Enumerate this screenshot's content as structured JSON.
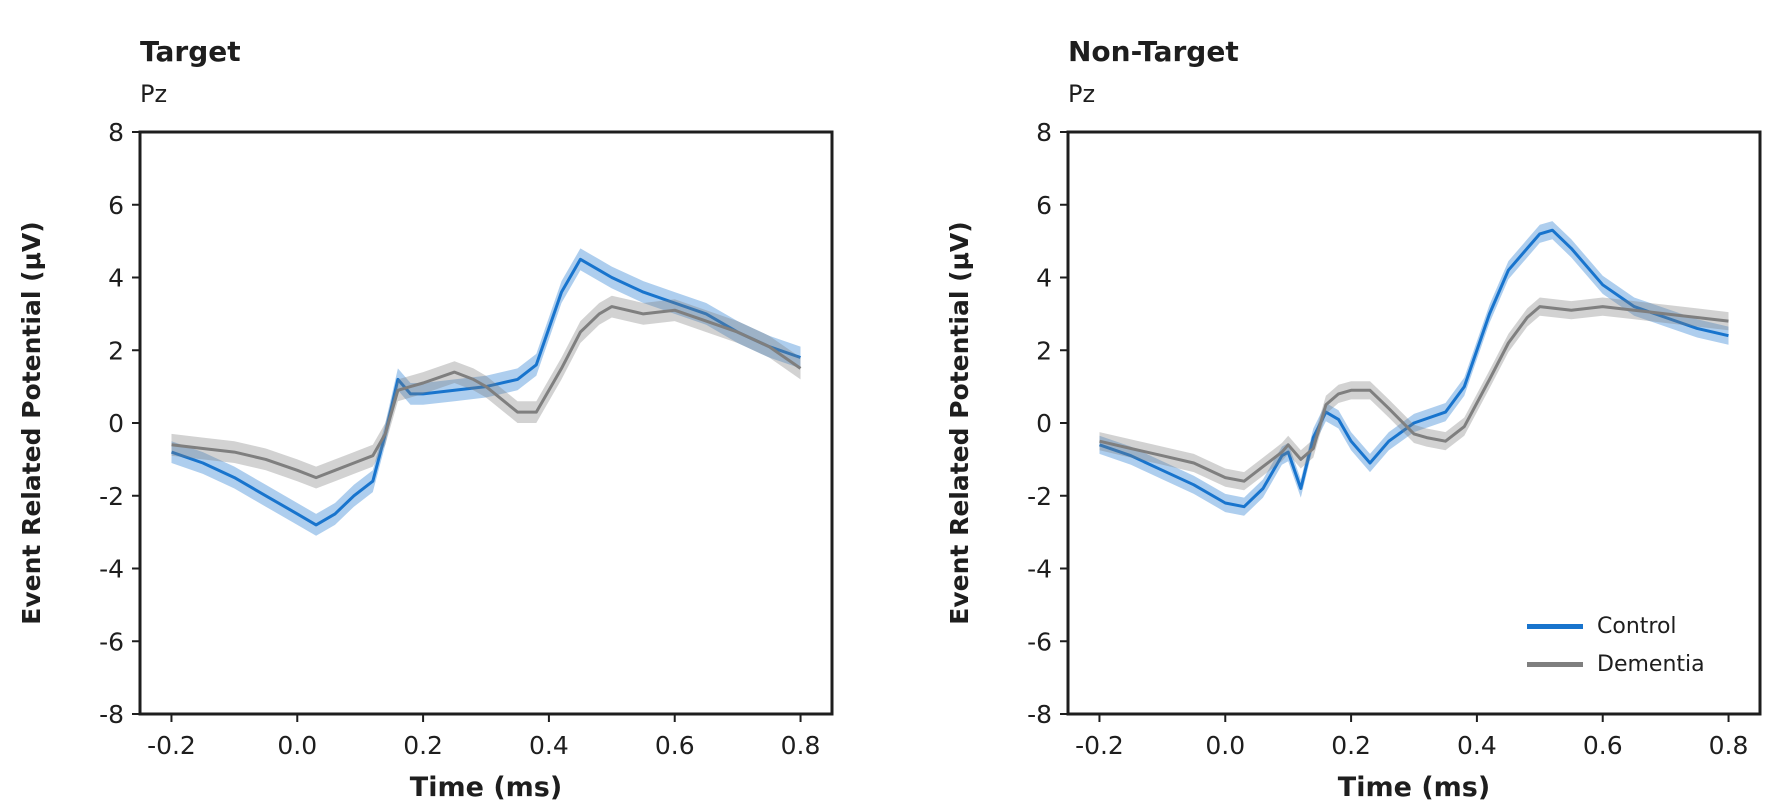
{
  "colors": {
    "control": "#1874CD",
    "dementia": "#7F7F7F",
    "axis": "#1e1e1e"
  },
  "legend": {
    "control_label": "Control",
    "dementia_label": "Dementia",
    "placement": "lower-right of second panel"
  },
  "chart_data": [
    {
      "type": "line",
      "title": "Target",
      "subtitle": "Pz",
      "xlabel": "Time (ms)",
      "ylabel": "Event Related Potential (μV)",
      "xlim": [
        -0.25,
        0.85
      ],
      "ylim": [
        -8,
        8
      ],
      "xticks": [
        "-0.2",
        "0.0",
        "0.2",
        "0.4",
        "0.6",
        "0.8"
      ],
      "yticks": [
        "-8",
        "-6",
        "-4",
        "-2",
        "0",
        "2",
        "4",
        "6",
        "8"
      ],
      "grid": false,
      "series": [
        {
          "name": "Control",
          "band": 0.3,
          "x": [
            -0.2,
            -0.15,
            -0.1,
            -0.05,
            0.0,
            0.03,
            0.06,
            0.09,
            0.12,
            0.14,
            0.16,
            0.18,
            0.2,
            0.25,
            0.3,
            0.35,
            0.38,
            0.42,
            0.45,
            0.48,
            0.5,
            0.55,
            0.6,
            0.65,
            0.7,
            0.75,
            0.8
          ],
          "y": [
            -0.8,
            -1.1,
            -1.5,
            -2.0,
            -2.5,
            -2.8,
            -2.5,
            -2.0,
            -1.6,
            -0.3,
            1.2,
            0.8,
            0.8,
            0.9,
            1.0,
            1.2,
            1.6,
            3.6,
            4.5,
            4.2,
            4.0,
            3.6,
            3.3,
            3.0,
            2.5,
            2.1,
            1.8
          ]
        },
        {
          "name": "Dementia",
          "band": 0.3,
          "x": [
            -0.2,
            -0.15,
            -0.1,
            -0.05,
            0.0,
            0.03,
            0.06,
            0.09,
            0.12,
            0.14,
            0.16,
            0.18,
            0.2,
            0.25,
            0.28,
            0.3,
            0.35,
            0.38,
            0.42,
            0.45,
            0.48,
            0.5,
            0.55,
            0.6,
            0.65,
            0.7,
            0.75,
            0.8
          ],
          "y": [
            -0.6,
            -0.7,
            -0.8,
            -1.0,
            -1.3,
            -1.5,
            -1.3,
            -1.1,
            -0.9,
            -0.3,
            0.9,
            1.0,
            1.1,
            1.4,
            1.2,
            1.0,
            0.3,
            0.3,
            1.5,
            2.5,
            3.0,
            3.2,
            3.0,
            3.1,
            2.8,
            2.5,
            2.1,
            1.5
          ]
        }
      ]
    },
    {
      "type": "line",
      "title": "Non-Target",
      "subtitle": "Pz",
      "xlabel": "Time (ms)",
      "ylabel": "Event Related Potential (μV)",
      "xlim": [
        -0.25,
        0.85
      ],
      "ylim": [
        -8,
        8
      ],
      "xticks": [
        "-0.2",
        "0.0",
        "0.2",
        "0.4",
        "0.6",
        "0.8"
      ],
      "yticks": [
        "-8",
        "-6",
        "-4",
        "-2",
        "0",
        "2",
        "4",
        "6",
        "8"
      ],
      "grid": false,
      "series": [
        {
          "name": "Control",
          "band": 0.25,
          "x": [
            -0.2,
            -0.15,
            -0.1,
            -0.05,
            0.0,
            0.03,
            0.06,
            0.09,
            0.1,
            0.12,
            0.14,
            0.16,
            0.18,
            0.2,
            0.23,
            0.26,
            0.3,
            0.35,
            0.38,
            0.42,
            0.45,
            0.48,
            0.5,
            0.52,
            0.55,
            0.6,
            0.65,
            0.7,
            0.75,
            0.8
          ],
          "y": [
            -0.6,
            -0.9,
            -1.3,
            -1.7,
            -2.2,
            -2.3,
            -1.8,
            -0.9,
            -0.8,
            -1.8,
            -0.4,
            0.3,
            0.1,
            -0.5,
            -1.1,
            -0.5,
            0.0,
            0.3,
            1.0,
            3.0,
            4.2,
            4.8,
            5.2,
            5.3,
            4.8,
            3.8,
            3.2,
            2.9,
            2.6,
            2.4
          ]
        },
        {
          "name": "Dementia",
          "band": 0.25,
          "x": [
            -0.2,
            -0.15,
            -0.1,
            -0.05,
            0.0,
            0.03,
            0.06,
            0.09,
            0.1,
            0.12,
            0.14,
            0.16,
            0.18,
            0.2,
            0.23,
            0.26,
            0.3,
            0.32,
            0.35,
            0.38,
            0.42,
            0.45,
            0.48,
            0.5,
            0.55,
            0.6,
            0.65,
            0.7,
            0.75,
            0.8
          ],
          "y": [
            -0.5,
            -0.7,
            -0.9,
            -1.1,
            -1.5,
            -1.6,
            -1.2,
            -0.8,
            -0.6,
            -1.0,
            -0.7,
            0.5,
            0.8,
            0.9,
            0.9,
            0.4,
            -0.3,
            -0.4,
            -0.5,
            -0.1,
            1.2,
            2.2,
            2.9,
            3.2,
            3.1,
            3.2,
            3.1,
            3.0,
            2.9,
            2.8
          ]
        }
      ]
    }
  ]
}
